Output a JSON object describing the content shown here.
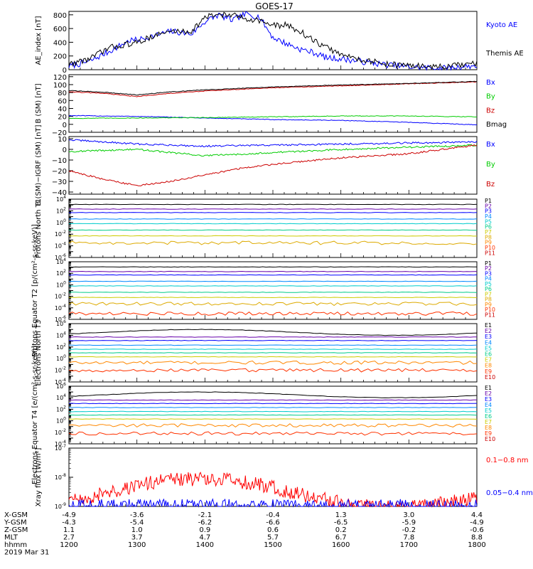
{
  "title": "GOES-17",
  "chart_data": [
    {
      "type": "line",
      "ylabel": "AE_index [nT]",
      "ylim": [
        0,
        850
      ],
      "yticks": [
        0,
        200,
        400,
        600,
        800
      ],
      "yticklabels": [
        "0",
        "200",
        "400",
        "600",
        "800"
      ],
      "series": [
        {
          "name": "Kyoto AE",
          "color": "#0000ff",
          "x": [
            12.0,
            12.3,
            12.6,
            12.9,
            13.0,
            13.2,
            13.5,
            13.8,
            14.0,
            14.2,
            14.4,
            14.6,
            14.8,
            15.0,
            15.2,
            15.4,
            15.6,
            15.8,
            16.0,
            16.3,
            16.6,
            17.0,
            17.5,
            18.0
          ],
          "y": [
            50,
            120,
            270,
            430,
            430,
            480,
            560,
            520,
            700,
            800,
            720,
            810,
            770,
            470,
            380,
            300,
            250,
            170,
            160,
            120,
            80,
            40,
            20,
            60
          ]
        },
        {
          "name": "Themis AE",
          "color": "#000000",
          "x": [
            12.0,
            12.3,
            12.6,
            12.9,
            13.0,
            13.2,
            13.5,
            13.8,
            14.0,
            14.2,
            14.4,
            14.6,
            14.8,
            15.0,
            15.2,
            15.4,
            15.6,
            15.8,
            16.0,
            16.3,
            16.6,
            17.0,
            17.5,
            18.0
          ],
          "y": [
            80,
            160,
            320,
            380,
            390,
            480,
            560,
            560,
            760,
            810,
            790,
            750,
            720,
            640,
            650,
            560,
            420,
            320,
            220,
            150,
            90,
            60,
            40,
            90
          ]
        }
      ]
    },
    {
      "type": "line",
      "ylabel": "B (SM) [nT]",
      "ylim": [
        -20,
        125
      ],
      "yticks": [
        -20,
        0,
        20,
        40,
        60,
        80,
        100,
        120
      ],
      "yticklabels": [
        "−20",
        "0",
        "20",
        "40",
        "60",
        "80",
        "100",
        "120"
      ],
      "series": [
        {
          "name": "Bx",
          "color": "#0000ff",
          "x": [
            12.0,
            13.0,
            14.0,
            15.0,
            16.0,
            17.0,
            18.0
          ],
          "y": [
            22,
            20,
            16,
            12,
            10,
            5,
            -1
          ]
        },
        {
          "name": "By",
          "color": "#00cc00",
          "x": [
            12.0,
            13.0,
            14.0,
            15.0,
            16.0,
            17.0,
            18.0
          ],
          "y": [
            15,
            16,
            17,
            19,
            21,
            21,
            19
          ]
        },
        {
          "name": "Bz",
          "color": "#cc0000",
          "x": [
            12.0,
            12.5,
            13.0,
            13.5,
            14.0,
            15.0,
            16.0,
            17.0,
            18.0
          ],
          "y": [
            82,
            78,
            70,
            78,
            84,
            92,
            97,
            102,
            107
          ]
        },
        {
          "name": "Bmag",
          "color": "#000000",
          "x": [
            12.0,
            12.5,
            13.0,
            13.5,
            14.0,
            15.0,
            16.0,
            17.0,
            18.0
          ],
          "y": [
            85,
            81,
            74,
            82,
            87,
            94,
            99,
            103,
            108
          ]
        }
      ]
    },
    {
      "type": "line",
      "ylabel": "B (SM)−IGRF (SM) [nT]",
      "ylim": [
        -42,
        12
      ],
      "yticks": [
        -40,
        -30,
        -20,
        -10,
        0,
        10
      ],
      "yticklabels": [
        "−40",
        "−30",
        "−20",
        "−10",
        "0",
        "10"
      ],
      "series": [
        {
          "name": "Bx",
          "color": "#0000ff",
          "x": [
            12.0,
            13.0,
            14.0,
            15.0,
            16.0,
            17.0,
            18.0
          ],
          "y": [
            9,
            5,
            3,
            4,
            5,
            6,
            7
          ]
        },
        {
          "name": "By",
          "color": "#00cc00",
          "x": [
            12.0,
            13.0,
            14.0,
            15.0,
            16.0,
            17.0,
            18.0
          ],
          "y": [
            -2,
            0,
            -6,
            -3,
            0,
            2,
            4
          ]
        },
        {
          "name": "Bz",
          "color": "#cc0000",
          "x": [
            12.0,
            12.5,
            13.0,
            13.5,
            14.0,
            14.5,
            15.0,
            16.0,
            17.0,
            18.0
          ],
          "y": [
            -20,
            -28,
            -34,
            -30,
            -24,
            -18,
            -14,
            -8,
            -4,
            4
          ]
        }
      ]
    },
    {
      "type": "line",
      "log": true,
      "ylabel": "Protons North T1",
      "ylim_exp": [
        -6,
        4
      ],
      "series": [
        {
          "name": "P1",
          "color": "#000000",
          "exp": 3.1
        },
        {
          "name": "P2",
          "color": "#6600aa",
          "exp": 2.3
        },
        {
          "name": "P3",
          "color": "#0000ff",
          "exp": 1.7
        },
        {
          "name": "P4",
          "color": "#0088ff",
          "exp": 0.6
        },
        {
          "name": "P5",
          "color": "#00cccc",
          "exp": -0.2
        },
        {
          "name": "P6",
          "color": "#00cc88",
          "exp": -1.3
        },
        {
          "name": "P7",
          "color": "#cccc00",
          "exp": -2.3
        },
        {
          "name": "P8",
          "color": "#ddaa00",
          "exp": -3.5
        },
        {
          "name": "P9",
          "color": "#ff8800",
          "exp": null
        },
        {
          "name": "P10",
          "color": "#ff3300",
          "exp": null
        },
        {
          "name": "P11",
          "color": "#cc0000",
          "exp": null
        }
      ]
    },
    {
      "type": "line",
      "log": true,
      "ylabel": "Protons Equator T2 [p/(cm²-s-sr-keV)]",
      "ylim_exp": [
        -6,
        4
      ],
      "series": [
        {
          "name": "P1",
          "color": "#000000",
          "exp": 3.1
        },
        {
          "name": "P2",
          "color": "#6600aa",
          "exp": 2.3
        },
        {
          "name": "P3",
          "color": "#0000ff",
          "exp": 1.7
        },
        {
          "name": "P4",
          "color": "#0088ff",
          "exp": 0.6
        },
        {
          "name": "P5",
          "color": "#00cccc",
          "exp": -0.2
        },
        {
          "name": "P6",
          "color": "#00cc88",
          "exp": -1.3
        },
        {
          "name": "P7",
          "color": "#cccc00",
          "exp": -2.2
        },
        {
          "name": "P8",
          "color": "#ddaa00",
          "exp": -3.3
        },
        {
          "name": "P9",
          "color": "#ff8800",
          "exp": null
        },
        {
          "name": "P10",
          "color": "#ff3300",
          "exp": -5.0
        },
        {
          "name": "P11",
          "color": "#cc0000",
          "exp": null
        }
      ]
    },
    {
      "type": "line",
      "log": true,
      "ylabel": "Electrons North T3",
      "ylim_exp": [
        -4,
        6
      ],
      "series": [
        {
          "name": "E1",
          "color": "#000000",
          "exp": 4.5
        },
        {
          "name": "E2",
          "color": "#6600aa",
          "exp": 3.7
        },
        {
          "name": "E3",
          "color": "#0000ff",
          "exp": 3.1
        },
        {
          "name": "E4",
          "color": "#0088ff",
          "exp": 2.3
        },
        {
          "name": "E5",
          "color": "#00cccc",
          "exp": 1.6
        },
        {
          "name": "E6",
          "color": "#00cc88",
          "exp": 1.0
        },
        {
          "name": "E7",
          "color": "#cccc00",
          "exp": 0.3
        },
        {
          "name": "E8",
          "color": "#ff8800",
          "exp": -0.7
        },
        {
          "name": "E9",
          "color": "#ff3300",
          "exp": -2.0
        },
        {
          "name": "E10",
          "color": "#cc0000",
          "exp": null
        }
      ]
    },
    {
      "type": "line",
      "log": true,
      "ylabel": "Electrons Equator T4 [e/(cm²-s-sr-keV)]",
      "ylim_exp": [
        -4,
        6
      ],
      "series": [
        {
          "name": "E1",
          "color": "#000000",
          "exp": 4.5
        },
        {
          "name": "E2",
          "color": "#6600aa",
          "exp": 3.6
        },
        {
          "name": "E3",
          "color": "#0000ff",
          "exp": 3.0
        },
        {
          "name": "E4",
          "color": "#0088ff",
          "exp": 2.3
        },
        {
          "name": "E5",
          "color": "#00cccc",
          "exp": 1.6
        },
        {
          "name": "E6",
          "color": "#00cc88",
          "exp": 1.0
        },
        {
          "name": "E7",
          "color": "#cccc00",
          "exp": 0.3
        },
        {
          "name": "E8",
          "color": "#ff8800",
          "exp": -0.8
        },
        {
          "name": "E9",
          "color": "#ff3300",
          "exp": -2.2
        },
        {
          "name": "E10",
          "color": "#cc0000",
          "exp": null
        }
      ]
    },
    {
      "type": "line",
      "log": true,
      "ylabel": "Xray flux [W/m²]",
      "ylim_exp": [
        -9,
        -7
      ],
      "series": [
        {
          "name": "0.1−0.8 nm",
          "color": "#ff0000",
          "exp": -8.55
        },
        {
          "name": "0.05−0.4 nm",
          "color": "#0000ff",
          "exp": -9.0
        }
      ]
    }
  ],
  "xaxis": {
    "range": [
      12.0,
      18.0
    ],
    "ticks": [
      12,
      13,
      14,
      15,
      16,
      17,
      18
    ],
    "rows": [
      {
        "label": "X-GSM",
        "values": [
          "-4.9",
          "-3.6",
          "-2.1",
          "-0.4",
          "1.3",
          "3.0",
          "4.4"
        ]
      },
      {
        "label": "Y-GSM",
        "values": [
          "-4.3",
          "-5.4",
          "-6.2",
          "-6.6",
          "-6.5",
          "-5.9",
          "-4.9"
        ]
      },
      {
        "label": "Z-GSM",
        "values": [
          "1.1",
          "1.0",
          "0.9",
          "0.6",
          "0.2",
          "-0.2",
          "-0.6"
        ]
      },
      {
        "label": "MLT",
        "values": [
          "2.7",
          "3.7",
          "4.7",
          "5.7",
          "6.7",
          "7.8",
          "8.8"
        ]
      },
      {
        "label": "hhmm",
        "values": [
          "1200",
          "1300",
          "1400",
          "1500",
          "1600",
          "1700",
          "1800"
        ]
      }
    ],
    "date": "2019 Mar 31"
  }
}
